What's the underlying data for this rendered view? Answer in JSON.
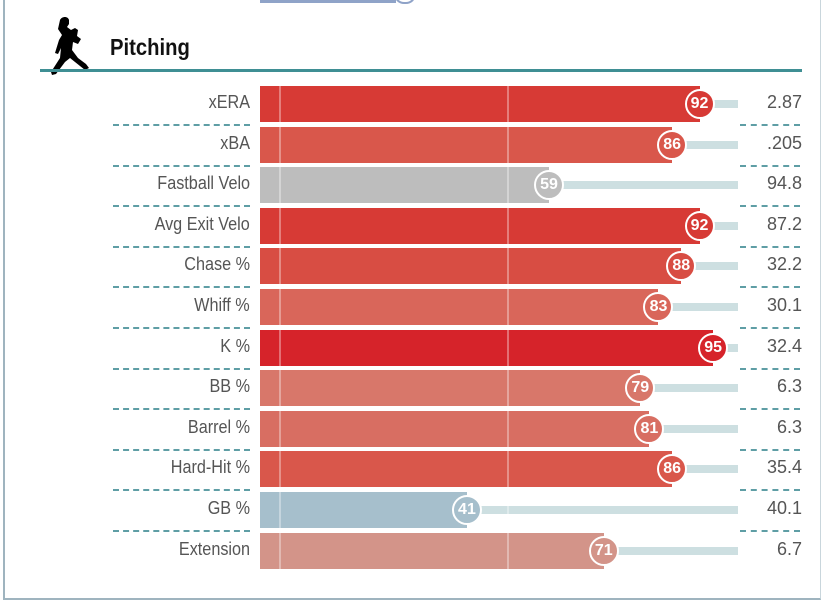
{
  "section": {
    "title": "Pitching",
    "icon": "pitcher-icon"
  },
  "rows": [
    {
      "label": "xERA",
      "percentile": 92,
      "value": "2.87",
      "color": "#d73a35"
    },
    {
      "label": "xBA",
      "percentile": 86,
      "value": ".205",
      "color": "#d9574b"
    },
    {
      "label": "Fastball Velo",
      "percentile": 59,
      "value": "94.8",
      "color": "#bdbdbd"
    },
    {
      "label": "Avg Exit Velo",
      "percentile": 92,
      "value": "87.2",
      "color": "#d73a35"
    },
    {
      "label": "Chase %",
      "percentile": 88,
      "value": "32.2",
      "color": "#d84d43"
    },
    {
      "label": "Whiff %",
      "percentile": 83,
      "value": "30.1",
      "color": "#d9665a"
    },
    {
      "label": "K %",
      "percentile": 95,
      "value": "32.4",
      "color": "#d6232a"
    },
    {
      "label": "BB %",
      "percentile": 79,
      "value": "6.3",
      "color": "#d8776a"
    },
    {
      "label": "Barrel %",
      "percentile": 81,
      "value": "6.3",
      "color": "#d86e62"
    },
    {
      "label": "Hard-Hit %",
      "percentile": 86,
      "value": "35.4",
      "color": "#d9574b"
    },
    {
      "label": "GB %",
      "percentile": 41,
      "value": "40.1",
      "color": "#a6bfcc"
    },
    {
      "label": "Extension",
      "percentile": 71,
      "value": "6.7",
      "color": "#d39489"
    }
  ]
}
